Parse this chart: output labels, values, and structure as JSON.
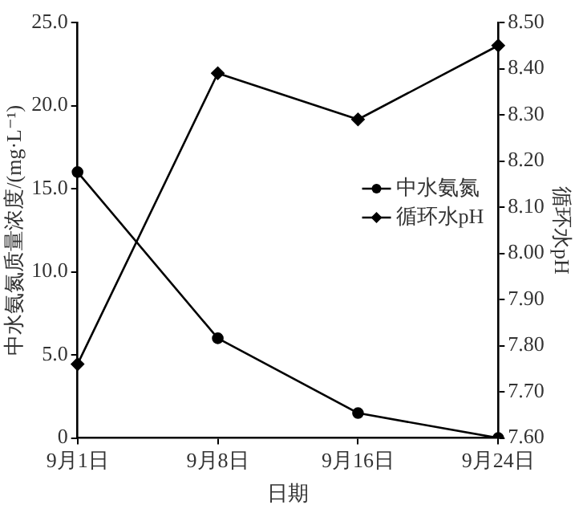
{
  "chart_data": {
    "type": "line",
    "xlabel": "日期",
    "ylabel": "中水氨氮质量浓度/(mg·L⁻¹)",
    "y2label": "循环水pH",
    "categories": [
      "9月1日",
      "9月8日",
      "9月16日",
      "9月24日"
    ],
    "series": [
      {
        "name": "中水氨氮",
        "color": "#000000",
        "marker": "circle",
        "values": [
          16.0,
          6.0,
          1.5,
          0
        ]
      },
      {
        "name": "循环水pH",
        "color": "#000000",
        "marker": "diamond",
        "axis": "y2",
        "values": [
          7.76,
          8.39,
          8.29,
          8.45
        ]
      }
    ],
    "ylim": [
      0,
      25
    ],
    "yticks": [
      {
        "value": 0,
        "label": "0"
      },
      {
        "value": 5,
        "label": "5.0"
      },
      {
        "value": 10,
        "label": "10.0"
      },
      {
        "value": 15,
        "label": "15.0"
      },
      {
        "value": 20,
        "label": "20.0"
      },
      {
        "value": 25,
        "label": "25.0"
      }
    ],
    "y2lim": [
      7.6,
      8.5
    ],
    "y2ticks": [
      {
        "value": 7.6,
        "label": "7.60"
      },
      {
        "value": 7.7,
        "label": "7.70"
      },
      {
        "value": 7.8,
        "label": "7.80"
      },
      {
        "value": 7.9,
        "label": "7.90"
      },
      {
        "value": 8.0,
        "label": "8.00"
      },
      {
        "value": 8.1,
        "label": "8.10"
      },
      {
        "value": 8.2,
        "label": "8.20"
      },
      {
        "value": 8.3,
        "label": "8.30"
      },
      {
        "value": 8.4,
        "label": "8.40"
      },
      {
        "value": 8.5,
        "label": "8.50"
      }
    ],
    "grid": false,
    "legend": "right",
    "line_style": "solid"
  }
}
